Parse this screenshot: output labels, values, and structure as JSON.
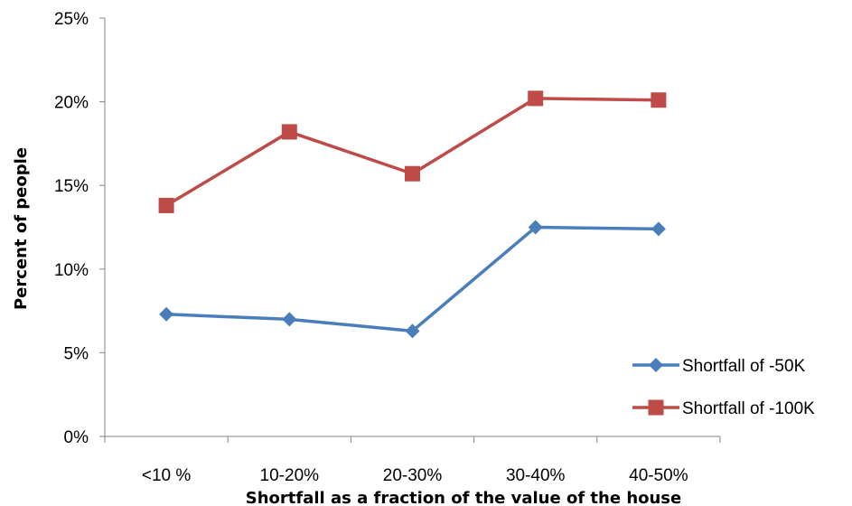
{
  "chart_data": {
    "type": "line",
    "title": "",
    "xlabel": "Shortfall as a fraction of the value of the house",
    "ylabel": "Percent of people",
    "categories": [
      "<10 %",
      "10-20%",
      "20-30%",
      "30-40%",
      "40-50%"
    ],
    "ylim": [
      0,
      25
    ],
    "yticks": [
      0,
      5,
      10,
      15,
      20,
      25
    ],
    "ytick_labels": [
      "0%",
      "5%",
      "10%",
      "15%",
      "20%",
      "25%"
    ],
    "grid": false,
    "legend_position": "bottom-right",
    "series": [
      {
        "name": "Shortfall of -50K",
        "values": [
          7.3,
          7.0,
          6.3,
          12.5,
          12.4
        ],
        "color": "#4a7ebb",
        "marker": "diamond"
      },
      {
        "name": "Shortfall of -100K",
        "values": [
          13.8,
          18.2,
          15.7,
          20.2,
          20.1
        ],
        "color": "#be4b48",
        "marker": "square"
      }
    ]
  }
}
